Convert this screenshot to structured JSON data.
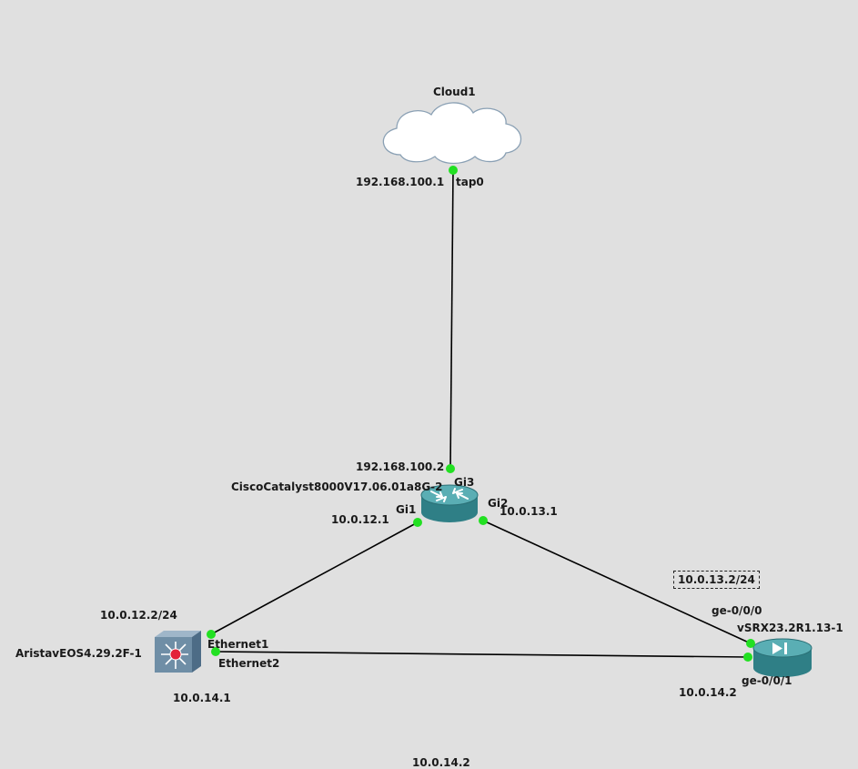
{
  "colors": {
    "background": "#e0e0e0",
    "link": "#000000",
    "port_up": "#22e022",
    "router": "#3a8e94",
    "switch": "#6f8ea6"
  },
  "nodes": {
    "cloud": {
      "name": "Cloud1",
      "icon": "cloud-icon"
    },
    "cisco": {
      "name": "CiscoCatalyst8000V17.06.01a8G-2",
      "icon": "router-icon"
    },
    "arista": {
      "name": "AristavEOS4.29.2F-1",
      "icon": "switch-icon"
    },
    "vsrx": {
      "name": "vSRX23.2R1.13-1",
      "icon": "firewall-icon"
    }
  },
  "ports": {
    "cloud_tap0": "tap0",
    "cisco_gi3": "Gi3",
    "cisco_gi1": "Gi1",
    "cisco_gi2": "Gi2",
    "arista_eth1": "Ethernet1",
    "arista_eth2": "Ethernet2",
    "vsrx_ge000": "ge-0/0/0",
    "vsrx_ge001": "ge-0/0/1"
  },
  "addresses": {
    "cloud_tap0": "192.168.100.1",
    "cisco_gi3": "192.168.100.2",
    "cisco_gi1": "10.0.12.1",
    "cisco_gi2": "10.0.13.1",
    "arista_eth1": "10.0.12.2/24",
    "arista_eth2": "10.0.14.1",
    "vsrx_ge000": "10.0.13.2/24",
    "vsrx_ge001": "10.0.14.2",
    "bottom_note": "10.0.14.2"
  }
}
